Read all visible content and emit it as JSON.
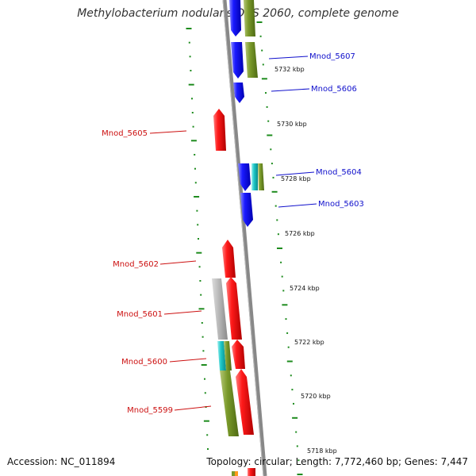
{
  "title": "Methylobacterium nodulans ORS 2060, complete genome",
  "footer": {
    "accession": "Accession: NC_011894",
    "topology": "Topology: circular; Length: 7,772,460 bp; Genes: 7,447"
  },
  "colors": {
    "backbone": "#888888",
    "tick": "#1e8c1e",
    "blue_gene": "#1a1aff",
    "red_gene": "#ff1a1a",
    "olive_gene": "#7a9a2a",
    "grey_gene": "#bbbbbb",
    "cyan_gene": "#1ec8c8",
    "label_blue": "#1010cc",
    "label_red": "#cc1010"
  },
  "scale_labels": [
    "5732 kbp",
    "5730 kbp",
    "5728 kbp",
    "5726 kbp",
    "5724 kbp",
    "5722 kbp",
    "5720 kbp",
    "5718 kbp"
  ],
  "gene_labels": [
    {
      "text": "Mnod_5607",
      "color": "blue"
    },
    {
      "text": "Mnod_5606",
      "color": "blue"
    },
    {
      "text": "Mnod_5605",
      "color": "red"
    },
    {
      "text": "Mnod_5604",
      "color": "blue"
    },
    {
      "text": "Mnod_5603",
      "color": "blue"
    },
    {
      "text": "Mnod_5602",
      "color": "red"
    },
    {
      "text": "Mnod_5601",
      "color": "red"
    },
    {
      "text": "Mnod_5600",
      "color": "red"
    },
    {
      "text": "Mnod_5599",
      "color": "red"
    }
  ]
}
